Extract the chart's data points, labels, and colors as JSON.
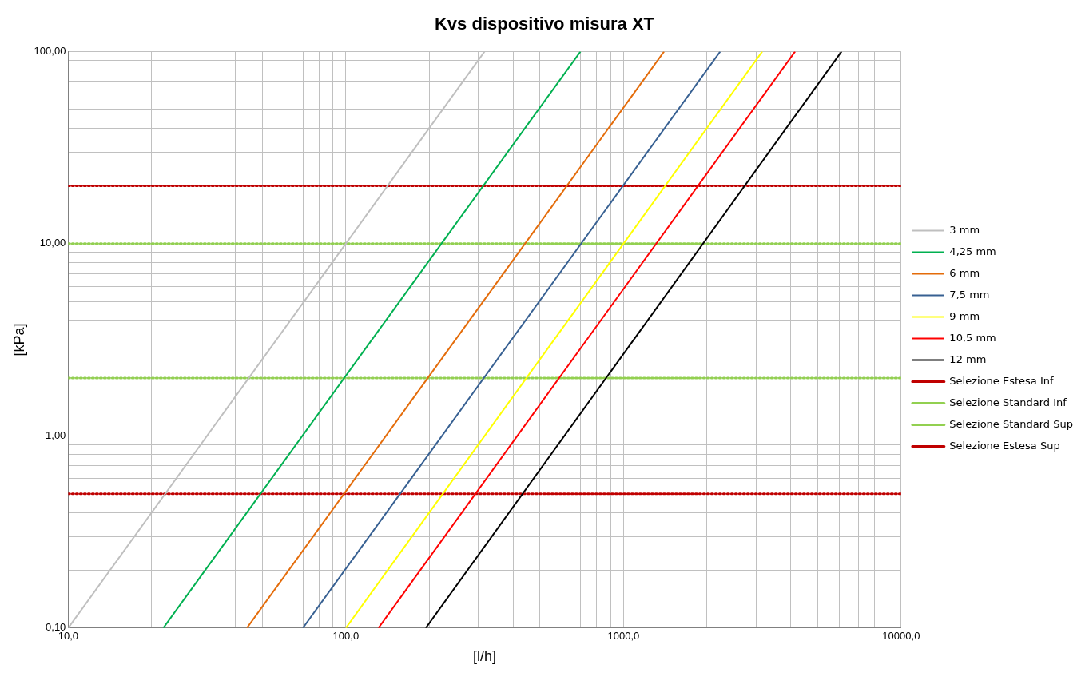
{
  "chart_data": {
    "type": "line",
    "title": "Kvs dispositivo misura XT",
    "xlabel": "[l/h]",
    "ylabel": "[kPa]",
    "log": "xy",
    "grid": true,
    "legend": "right",
    "marker": "none",
    "line_style": "solid",
    "xlim": [
      10,
      10000
    ],
    "ylim": [
      0.1,
      100
    ],
    "xticks": [
      {
        "value": 10,
        "label": "10,0"
      },
      {
        "value": 20,
        "label": null
      },
      {
        "value": 30,
        "label": null
      },
      {
        "value": 40,
        "label": null
      },
      {
        "value": 50,
        "label": null
      },
      {
        "value": 60,
        "label": null
      },
      {
        "value": 70,
        "label": null
      },
      {
        "value": 80,
        "label": null
      },
      {
        "value": 90,
        "label": null
      },
      {
        "value": 100,
        "label": "100,0"
      },
      {
        "value": 200,
        "label": null
      },
      {
        "value": 300,
        "label": null
      },
      {
        "value": 400,
        "label": null
      },
      {
        "value": 500,
        "label": null
      },
      {
        "value": 600,
        "label": null
      },
      {
        "value": 700,
        "label": null
      },
      {
        "value": 800,
        "label": null
      },
      {
        "value": 900,
        "label": null
      },
      {
        "value": 1000,
        "label": "1000,0"
      },
      {
        "value": 2000,
        "label": null
      },
      {
        "value": 3000,
        "label": null
      },
      {
        "value": 4000,
        "label": null
      },
      {
        "value": 5000,
        "label": null
      },
      {
        "value": 6000,
        "label": null
      },
      {
        "value": 7000,
        "label": null
      },
      {
        "value": 8000,
        "label": null
      },
      {
        "value": 9000,
        "label": null
      },
      {
        "value": 10000,
        "label": "10000,0"
      }
    ],
    "yticks": [
      {
        "value": 0.1,
        "label": "0,10"
      },
      {
        "value": 0.2,
        "label": null
      },
      {
        "value": 0.3,
        "label": null
      },
      {
        "value": 0.4,
        "label": null
      },
      {
        "value": 0.5,
        "label": null
      },
      {
        "value": 0.6,
        "label": null
      },
      {
        "value": 0.7,
        "label": null
      },
      {
        "value": 0.8,
        "label": null
      },
      {
        "value": 0.9,
        "label": null
      },
      {
        "value": 1,
        "label": "1,00"
      },
      {
        "value": 2,
        "label": null
      },
      {
        "value": 3,
        "label": null
      },
      {
        "value": 4,
        "label": null
      },
      {
        "value": 5,
        "label": null
      },
      {
        "value": 6,
        "label": null
      },
      {
        "value": 7,
        "label": null
      },
      {
        "value": 8,
        "label": null
      },
      {
        "value": 9,
        "label": null
      },
      {
        "value": 10,
        "label": "10,00"
      },
      {
        "value": 20,
        "label": null
      },
      {
        "value": 30,
        "label": null
      },
      {
        "value": 40,
        "label": null
      },
      {
        "value": 50,
        "label": null
      },
      {
        "value": 60,
        "label": null
      },
      {
        "value": 70,
        "label": null
      },
      {
        "value": 80,
        "label": null
      },
      {
        "value": 90,
        "label": null
      },
      {
        "value": 100,
        "label": "100,00"
      }
    ],
    "series": [
      {
        "name": "3 mm",
        "color": "#bfbfbf",
        "x": [
          10,
          316
        ],
        "values": [
          0.1,
          100
        ]
      },
      {
        "name": "4,25 mm",
        "color": "#00b050",
        "x": [
          22,
          700
        ],
        "values": [
          0.1,
          100
        ]
      },
      {
        "name": "6 mm",
        "color": "#e46c0a",
        "x": [
          44,
          1400
        ],
        "values": [
          0.1,
          100
        ]
      },
      {
        "name": "7,5 mm",
        "color": "#376092",
        "x": [
          70,
          2230
        ],
        "values": [
          0.1,
          100
        ]
      },
      {
        "name": "9 mm",
        "color": "#ffff00",
        "x": [
          100,
          3160
        ],
        "values": [
          0.1,
          100
        ]
      },
      {
        "name": "10,5 mm",
        "color": "#ff0000",
        "x": [
          131,
          4150
        ],
        "values": [
          0.1,
          100
        ]
      },
      {
        "name": "12 mm",
        "color": "#000000",
        "x": [
          194,
          6100
        ],
        "values": [
          0.1,
          100
        ]
      },
      {
        "name": "Selezione Estesa Inf",
        "color": "#c00000",
        "line_style": "dotted",
        "x": [
          10,
          10000
        ],
        "values": [
          0.5,
          0.5
        ]
      },
      {
        "name": "Selezione Standard Inf",
        "color": "#92d050",
        "line_style": "dotted",
        "x": [
          10,
          10000
        ],
        "values": [
          2,
          2
        ]
      },
      {
        "name": "Selezione Standard Sup",
        "color": "#92d050",
        "line_style": "dotted",
        "x": [
          10,
          10000
        ],
        "values": [
          10,
          10
        ]
      },
      {
        "name": "Selezione Estesa Sup",
        "color": "#c00000",
        "line_style": "dotted",
        "x": [
          10,
          10000
        ],
        "values": [
          20,
          20
        ]
      }
    ]
  }
}
